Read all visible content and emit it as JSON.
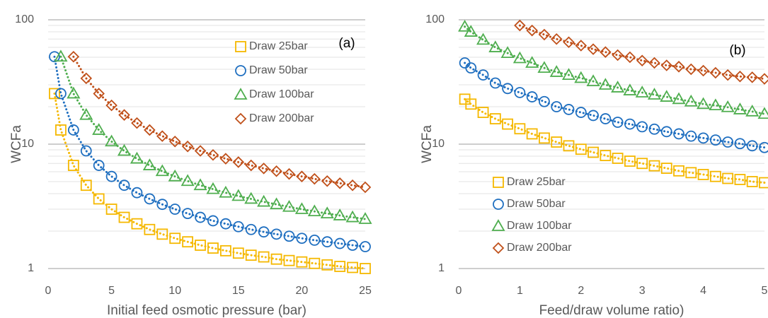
{
  "chart_data": [
    {
      "type": "scatter",
      "annotation": "(a)",
      "x_label": "Initial feed osmotic pressure (bar)",
      "y_label": "WCFa",
      "log_y": true,
      "grid": true,
      "legend": "upper right",
      "xlim": [
        0,
        25
      ],
      "xticks": [
        0,
        5,
        10,
        15,
        20,
        25
      ],
      "ylim": [
        1,
        100
      ],
      "yticks": [
        1,
        10,
        100
      ],
      "y_minor_ticks": [
        2,
        3,
        4,
        5,
        6,
        7,
        8,
        9,
        20,
        30,
        40,
        50,
        60,
        70,
        80,
        90
      ],
      "series": [
        {
          "name": "Draw 25bar",
          "color": "#f5b800",
          "marker": "square",
          "x": [
            0.5,
            1,
            2,
            3,
            4,
            5,
            6,
            7,
            8,
            9,
            10,
            11,
            12,
            13,
            14,
            15,
            16,
            17,
            18,
            19,
            20,
            21,
            22,
            23,
            24,
            25
          ],
          "values": [
            25.5,
            13,
            6.75,
            4.67,
            3.63,
            3,
            2.58,
            2.29,
            2.06,
            1.89,
            1.75,
            1.64,
            1.54,
            1.46,
            1.39,
            1.33,
            1.28,
            1.24,
            1.19,
            1.16,
            1.13,
            1.1,
            1.07,
            1.04,
            1.02,
            1
          ]
        },
        {
          "name": "Draw 50bar",
          "color": "#1f6fc0",
          "marker": "circle",
          "x": [
            0.5,
            1,
            2,
            3,
            4,
            5,
            6,
            7,
            8,
            9,
            10,
            11,
            12,
            13,
            14,
            15,
            16,
            17,
            18,
            19,
            20,
            21,
            22,
            23,
            24,
            25
          ],
          "values": [
            50.5,
            25.5,
            13,
            8.83,
            6.75,
            5.5,
            4.67,
            4.07,
            3.63,
            3.28,
            3,
            2.77,
            2.58,
            2.42,
            2.29,
            2.17,
            2.06,
            1.97,
            1.89,
            1.82,
            1.75,
            1.69,
            1.64,
            1.59,
            1.54,
            1.5
          ]
        },
        {
          "name": "Draw 100bar",
          "color": "#4fae4f",
          "marker": "triangle",
          "x": [
            1,
            2,
            3,
            4,
            5,
            6,
            7,
            8,
            9,
            10,
            11,
            12,
            13,
            14,
            15,
            16,
            17,
            18,
            19,
            20,
            21,
            22,
            23,
            24,
            25
          ],
          "values": [
            50.5,
            25.5,
            17.17,
            13,
            10.5,
            8.83,
            7.64,
            6.75,
            6.06,
            5.5,
            5.05,
            4.67,
            4.35,
            4.07,
            3.83,
            3.63,
            3.44,
            3.28,
            3.13,
            3,
            2.88,
            2.77,
            2.67,
            2.58,
            2.5
          ]
        },
        {
          "name": "Draw 200bar",
          "color": "#c0501a",
          "marker": "diamond",
          "x": [
            2,
            3,
            4,
            5,
            6,
            7,
            8,
            9,
            10,
            11,
            12,
            13,
            14,
            15,
            16,
            17,
            18,
            19,
            20,
            21,
            22,
            23,
            24,
            25
          ],
          "values": [
            50.5,
            33.83,
            25.5,
            20.5,
            17.17,
            14.79,
            13,
            11.61,
            10.5,
            9.59,
            8.83,
            8.19,
            7.64,
            7.17,
            6.75,
            6.38,
            6.06,
            5.76,
            5.5,
            5.26,
            5.05,
            4.85,
            4.67,
            4.5
          ]
        }
      ]
    },
    {
      "type": "scatter",
      "annotation": "(b)",
      "x_label": "Feed/draw volume ratio)",
      "y_label": "WCFa",
      "log_y": true,
      "grid": true,
      "legend": "lower left",
      "xlim": [
        0,
        5
      ],
      "xticks": [
        0,
        1,
        2,
        3,
        4,
        5
      ],
      "ylim": [
        1,
        100
      ],
      "yticks": [
        1,
        10,
        100
      ],
      "y_minor_ticks": [
        2,
        3,
        4,
        5,
        6,
        7,
        8,
        9,
        20,
        30,
        40,
        50,
        60,
        70,
        80,
        90
      ],
      "series": [
        {
          "name": "Draw 25bar",
          "color": "#f5b800",
          "marker": "square",
          "x": [
            0.1,
            0.2,
            0.4,
            0.6,
            0.8,
            1.0,
            1.2,
            1.4,
            1.6,
            1.8,
            2.0,
            2.2,
            2.4,
            2.6,
            2.8,
            3.0,
            3.2,
            3.4,
            3.6,
            3.8,
            4.0,
            4.2,
            4.4,
            4.6,
            4.8,
            5.0
          ],
          "values": [
            23,
            21,
            18,
            16,
            14.5,
            13.3,
            12.1,
            11.2,
            10.4,
            9.7,
            9.1,
            8.6,
            8.1,
            7.7,
            7.3,
            7.0,
            6.7,
            6.4,
            6.1,
            5.9,
            5.7,
            5.5,
            5.3,
            5.2,
            5.0,
            4.9
          ]
        },
        {
          "name": "Draw 50bar",
          "color": "#1f6fc0",
          "marker": "circle",
          "x": [
            0.1,
            0.2,
            0.4,
            0.6,
            0.8,
            1.0,
            1.2,
            1.4,
            1.6,
            1.8,
            2.0,
            2.2,
            2.4,
            2.6,
            2.8,
            3.0,
            3.2,
            3.4,
            3.6,
            3.8,
            4.0,
            4.2,
            4.4,
            4.6,
            4.8,
            5.0
          ],
          "values": [
            45,
            41,
            36,
            31,
            28,
            26,
            24,
            22,
            20,
            19,
            18,
            17,
            16,
            15,
            14.5,
            13.8,
            13.2,
            12.6,
            12.1,
            11.6,
            11.2,
            10.8,
            10.4,
            10.1,
            9.7,
            9.4
          ]
        },
        {
          "name": "Draw 100bar",
          "color": "#4fae4f",
          "marker": "triangle",
          "x": [
            0.1,
            0.2,
            0.4,
            0.6,
            0.8,
            1.0,
            1.2,
            1.4,
            1.6,
            1.8,
            2.0,
            2.2,
            2.4,
            2.6,
            2.8,
            3.0,
            3.2,
            3.4,
            3.6,
            3.8,
            4.0,
            4.2,
            4.4,
            4.6,
            4.8,
            5.0
          ],
          "values": [
            88,
            80,
            69,
            60,
            54,
            49,
            45,
            41,
            38,
            36,
            34,
            32,
            30,
            28.5,
            27,
            26,
            25,
            24,
            23,
            22,
            21,
            20.5,
            19.8,
            19,
            18.3,
            17.5
          ]
        },
        {
          "name": "Draw 200bar",
          "color": "#c0501a",
          "marker": "diamond",
          "x": [
            1.0,
            1.2,
            1.4,
            1.6,
            1.8,
            2.0,
            2.2,
            2.4,
            2.6,
            2.8,
            3.0,
            3.2,
            3.4,
            3.6,
            3.8,
            4.0,
            4.2,
            4.4,
            4.6,
            4.8,
            5.0
          ],
          "values": [
            90,
            82,
            76,
            70,
            66,
            62,
            58,
            55,
            52,
            50,
            47,
            45,
            43,
            42,
            40,
            39,
            37.5,
            36,
            35,
            34.5,
            33.5
          ]
        }
      ]
    }
  ]
}
